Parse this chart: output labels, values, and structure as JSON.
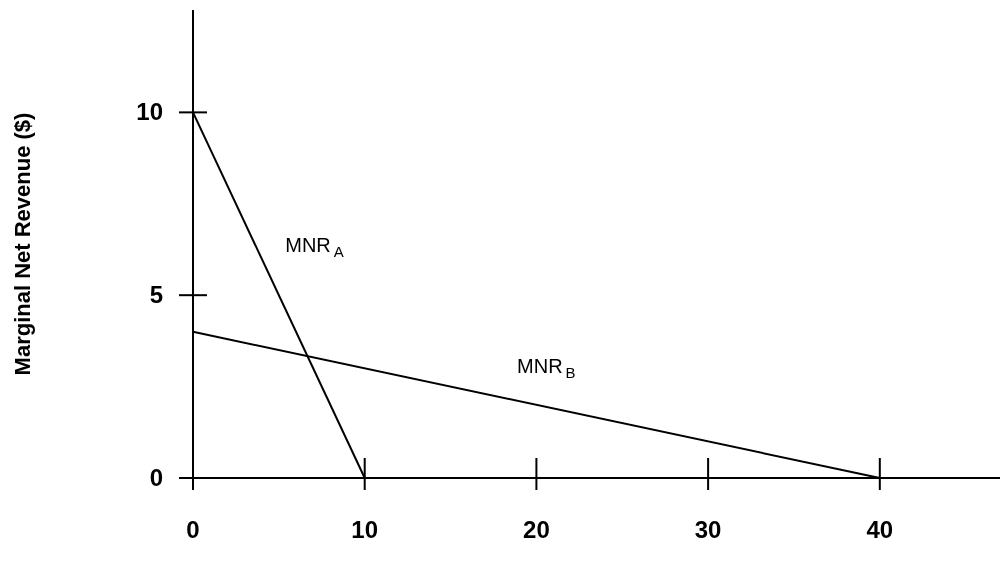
{
  "chart_data": {
    "type": "line",
    "ylabel": "Marginal Net Revenue ($)",
    "xlim": [
      0,
      47
    ],
    "xticks": [
      0,
      10,
      20,
      30,
      40
    ],
    "ylim": [
      0,
      12.8
    ],
    "yticks": [
      0,
      5,
      10
    ],
    "grid": false,
    "marker": "none",
    "line_style": "solid",
    "series": [
      {
        "name": "MNR$_{A}$",
        "color": "#000000",
        "x": [
          0,
          10
        ],
        "values": [
          10,
          0
        ]
      },
      {
        "name": "MNR$_{B}$",
        "color": "#000000",
        "x": [
          0,
          40
        ],
        "values": [
          4,
          0
        ]
      }
    ]
  }
}
